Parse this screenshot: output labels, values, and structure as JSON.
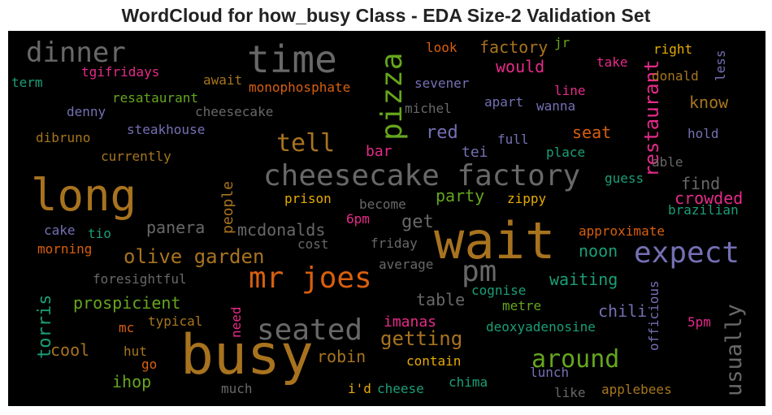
{
  "title": "WordCloud for how_busy Class - EDA Size-2 Validation Set",
  "palette": {
    "gold": "#a8731f",
    "gray": "#686868",
    "orange": "#d85f0e",
    "purple": "#7470b3",
    "pink": "#e52b89",
    "green": "#66a61e",
    "teal": "#1b9e77",
    "yellow": "#e6ab02",
    "brown": "#a6761d"
  },
  "chart_data": {
    "type": "wordcloud",
    "title": "WordCloud for how_busy Class - EDA Size-2 Validation Set",
    "words": [
      {
        "text": "busy",
        "size": 68,
        "color": "gold"
      },
      {
        "text": "wait",
        "size": 62,
        "color": "gold"
      },
      {
        "text": "long",
        "size": 54,
        "color": "gold"
      },
      {
        "text": "time",
        "size": 46,
        "color": "gray"
      },
      {
        "text": "cheesecake factory",
        "size": 36,
        "color": "gray"
      },
      {
        "text": "expect",
        "size": 36,
        "color": "purple"
      },
      {
        "text": "pizza",
        "size": 36,
        "color": "green"
      },
      {
        "text": "mr joes",
        "size": 36,
        "color": "orange"
      },
      {
        "text": "pm",
        "size": 36,
        "color": "gray"
      },
      {
        "text": "seated",
        "size": 36,
        "color": "gray"
      },
      {
        "text": "dinner",
        "size": 34,
        "color": "gray"
      },
      {
        "text": "around",
        "size": 30,
        "color": "green"
      },
      {
        "text": "tell",
        "size": 30,
        "color": "gold"
      },
      {
        "text": "usually",
        "size": 27,
        "color": "gray"
      },
      {
        "text": "restaurant",
        "size": 24,
        "color": "pink"
      },
      {
        "text": "olive garden",
        "size": 24,
        "color": "gold"
      },
      {
        "text": "getting",
        "size": 24,
        "color": "gold"
      },
      {
        "text": "red",
        "size": 22,
        "color": "purple"
      },
      {
        "text": "get",
        "size": 22,
        "color": "gray"
      },
      {
        "text": "torris",
        "size": 22,
        "color": "teal"
      },
      {
        "text": "factory",
        "size": 20,
        "color": "gold"
      },
      {
        "text": "would",
        "size": 20,
        "color": "pink"
      },
      {
        "text": "seat",
        "size": 20,
        "color": "orange"
      },
      {
        "text": "know",
        "size": 20,
        "color": "brown"
      },
      {
        "text": "find",
        "size": 20,
        "color": "gray"
      },
      {
        "text": "crowded",
        "size": 20,
        "color": "pink"
      },
      {
        "text": "party",
        "size": 20,
        "color": "green"
      },
      {
        "text": "mcdonalds",
        "size": 20,
        "color": "gray"
      },
      {
        "text": "panera",
        "size": 20,
        "color": "gray"
      },
      {
        "text": "noon",
        "size": 20,
        "color": "teal"
      },
      {
        "text": "waiting",
        "size": 20,
        "color": "teal"
      },
      {
        "text": "prospicient",
        "size": 20,
        "color": "green"
      },
      {
        "text": "chili",
        "size": 20,
        "color": "purple"
      },
      {
        "text": "table",
        "size": 20,
        "color": "gray"
      },
      {
        "text": "cool",
        "size": 20,
        "color": "gold"
      },
      {
        "text": "robin",
        "size": 20,
        "color": "gold"
      },
      {
        "text": "ihop",
        "size": 20,
        "color": "green"
      },
      {
        "text": "people",
        "size": 18,
        "color": "gold"
      },
      {
        "text": "bar",
        "size": 18,
        "color": "pink"
      },
      {
        "text": "tei",
        "size": 18,
        "color": "purple"
      },
      {
        "text": "imanas",
        "size": 18,
        "color": "pink"
      },
      {
        "text": "tgifridays",
        "size": 16,
        "color": "pink"
      },
      {
        "text": "look",
        "size": 16,
        "color": "orange"
      },
      {
        "text": "jr",
        "size": 16,
        "color": "green"
      },
      {
        "text": "right",
        "size": 16,
        "color": "yellow"
      },
      {
        "text": "less",
        "size": 16,
        "color": "purple"
      },
      {
        "text": "take",
        "size": 16,
        "color": "pink"
      },
      {
        "text": "donald",
        "size": 16,
        "color": "brown"
      },
      {
        "text": "term",
        "size": 16,
        "color": "teal"
      },
      {
        "text": "await",
        "size": 16,
        "color": "brown"
      },
      {
        "text": "monophosphate",
        "size": 16,
        "color": "orange"
      },
      {
        "text": "sevener",
        "size": 16,
        "color": "purple"
      },
      {
        "text": "line",
        "size": 16,
        "color": "pink"
      },
      {
        "text": "resataurant",
        "size": 16,
        "color": "green"
      },
      {
        "text": "apart",
        "size": 16,
        "color": "purple"
      },
      {
        "text": "wanna",
        "size": 16,
        "color": "purple"
      },
      {
        "text": "denny",
        "size": 16,
        "color": "purple"
      },
      {
        "text": "cheesecake",
        "size": 16,
        "color": "gray"
      },
      {
        "text": "michel",
        "size": 16,
        "color": "gray"
      },
      {
        "text": "dibruno",
        "size": 16,
        "color": "brown"
      },
      {
        "text": "steakhouse",
        "size": 16,
        "color": "purple"
      },
      {
        "text": "full",
        "size": 16,
        "color": "purple"
      },
      {
        "text": "hold",
        "size": 16,
        "color": "purple"
      },
      {
        "text": "currently",
        "size": 16,
        "color": "brown"
      },
      {
        "text": "place",
        "size": 16,
        "color": "teal"
      },
      {
        "text": "able",
        "size": 16,
        "color": "gray"
      },
      {
        "text": "guess",
        "size": 16,
        "color": "teal"
      },
      {
        "text": "prison",
        "size": 16,
        "color": "yellow"
      },
      {
        "text": "become",
        "size": 16,
        "color": "gray"
      },
      {
        "text": "zippy",
        "size": 16,
        "color": "yellow"
      },
      {
        "text": "brazilian",
        "size": 16,
        "color": "teal"
      },
      {
        "text": "6pm",
        "size": 16,
        "color": "pink"
      },
      {
        "text": "cake",
        "size": 16,
        "color": "purple"
      },
      {
        "text": "tio",
        "size": 16,
        "color": "teal"
      },
      {
        "text": "approximate",
        "size": 16,
        "color": "orange"
      },
      {
        "text": "morning",
        "size": 16,
        "color": "orange"
      },
      {
        "text": "cost",
        "size": 16,
        "color": "gray"
      },
      {
        "text": "friday",
        "size": 16,
        "color": "gray"
      },
      {
        "text": "average",
        "size": 16,
        "color": "gray"
      },
      {
        "text": "foresightful",
        "size": 16,
        "color": "gray"
      },
      {
        "text": "cognise",
        "size": 16,
        "color": "teal"
      },
      {
        "text": "metre",
        "size": 16,
        "color": "green"
      },
      {
        "text": "officious",
        "size": 16,
        "color": "purple"
      },
      {
        "text": "5pm",
        "size": 16,
        "color": "pink"
      },
      {
        "text": "mc",
        "size": 16,
        "color": "orange"
      },
      {
        "text": "typical",
        "size": 16,
        "color": "brown"
      },
      {
        "text": "need",
        "size": 16,
        "color": "pink"
      },
      {
        "text": "deoxyadenosine",
        "size": 16,
        "color": "teal"
      },
      {
        "text": "hut",
        "size": 16,
        "color": "brown"
      },
      {
        "text": "go",
        "size": 16,
        "color": "orange"
      },
      {
        "text": "contain",
        "size": 16,
        "color": "yellow"
      },
      {
        "text": "lunch",
        "size": 16,
        "color": "purple"
      },
      {
        "text": "chima",
        "size": 16,
        "color": "teal"
      },
      {
        "text": "i'd",
        "size": 16,
        "color": "yellow"
      },
      {
        "text": "cheese",
        "size": 16,
        "color": "teal"
      },
      {
        "text": "much",
        "size": 16,
        "color": "gray"
      },
      {
        "text": "like",
        "size": 16,
        "color": "gray"
      },
      {
        "text": "applebees",
        "size": 16,
        "color": "brown"
      }
    ]
  }
}
